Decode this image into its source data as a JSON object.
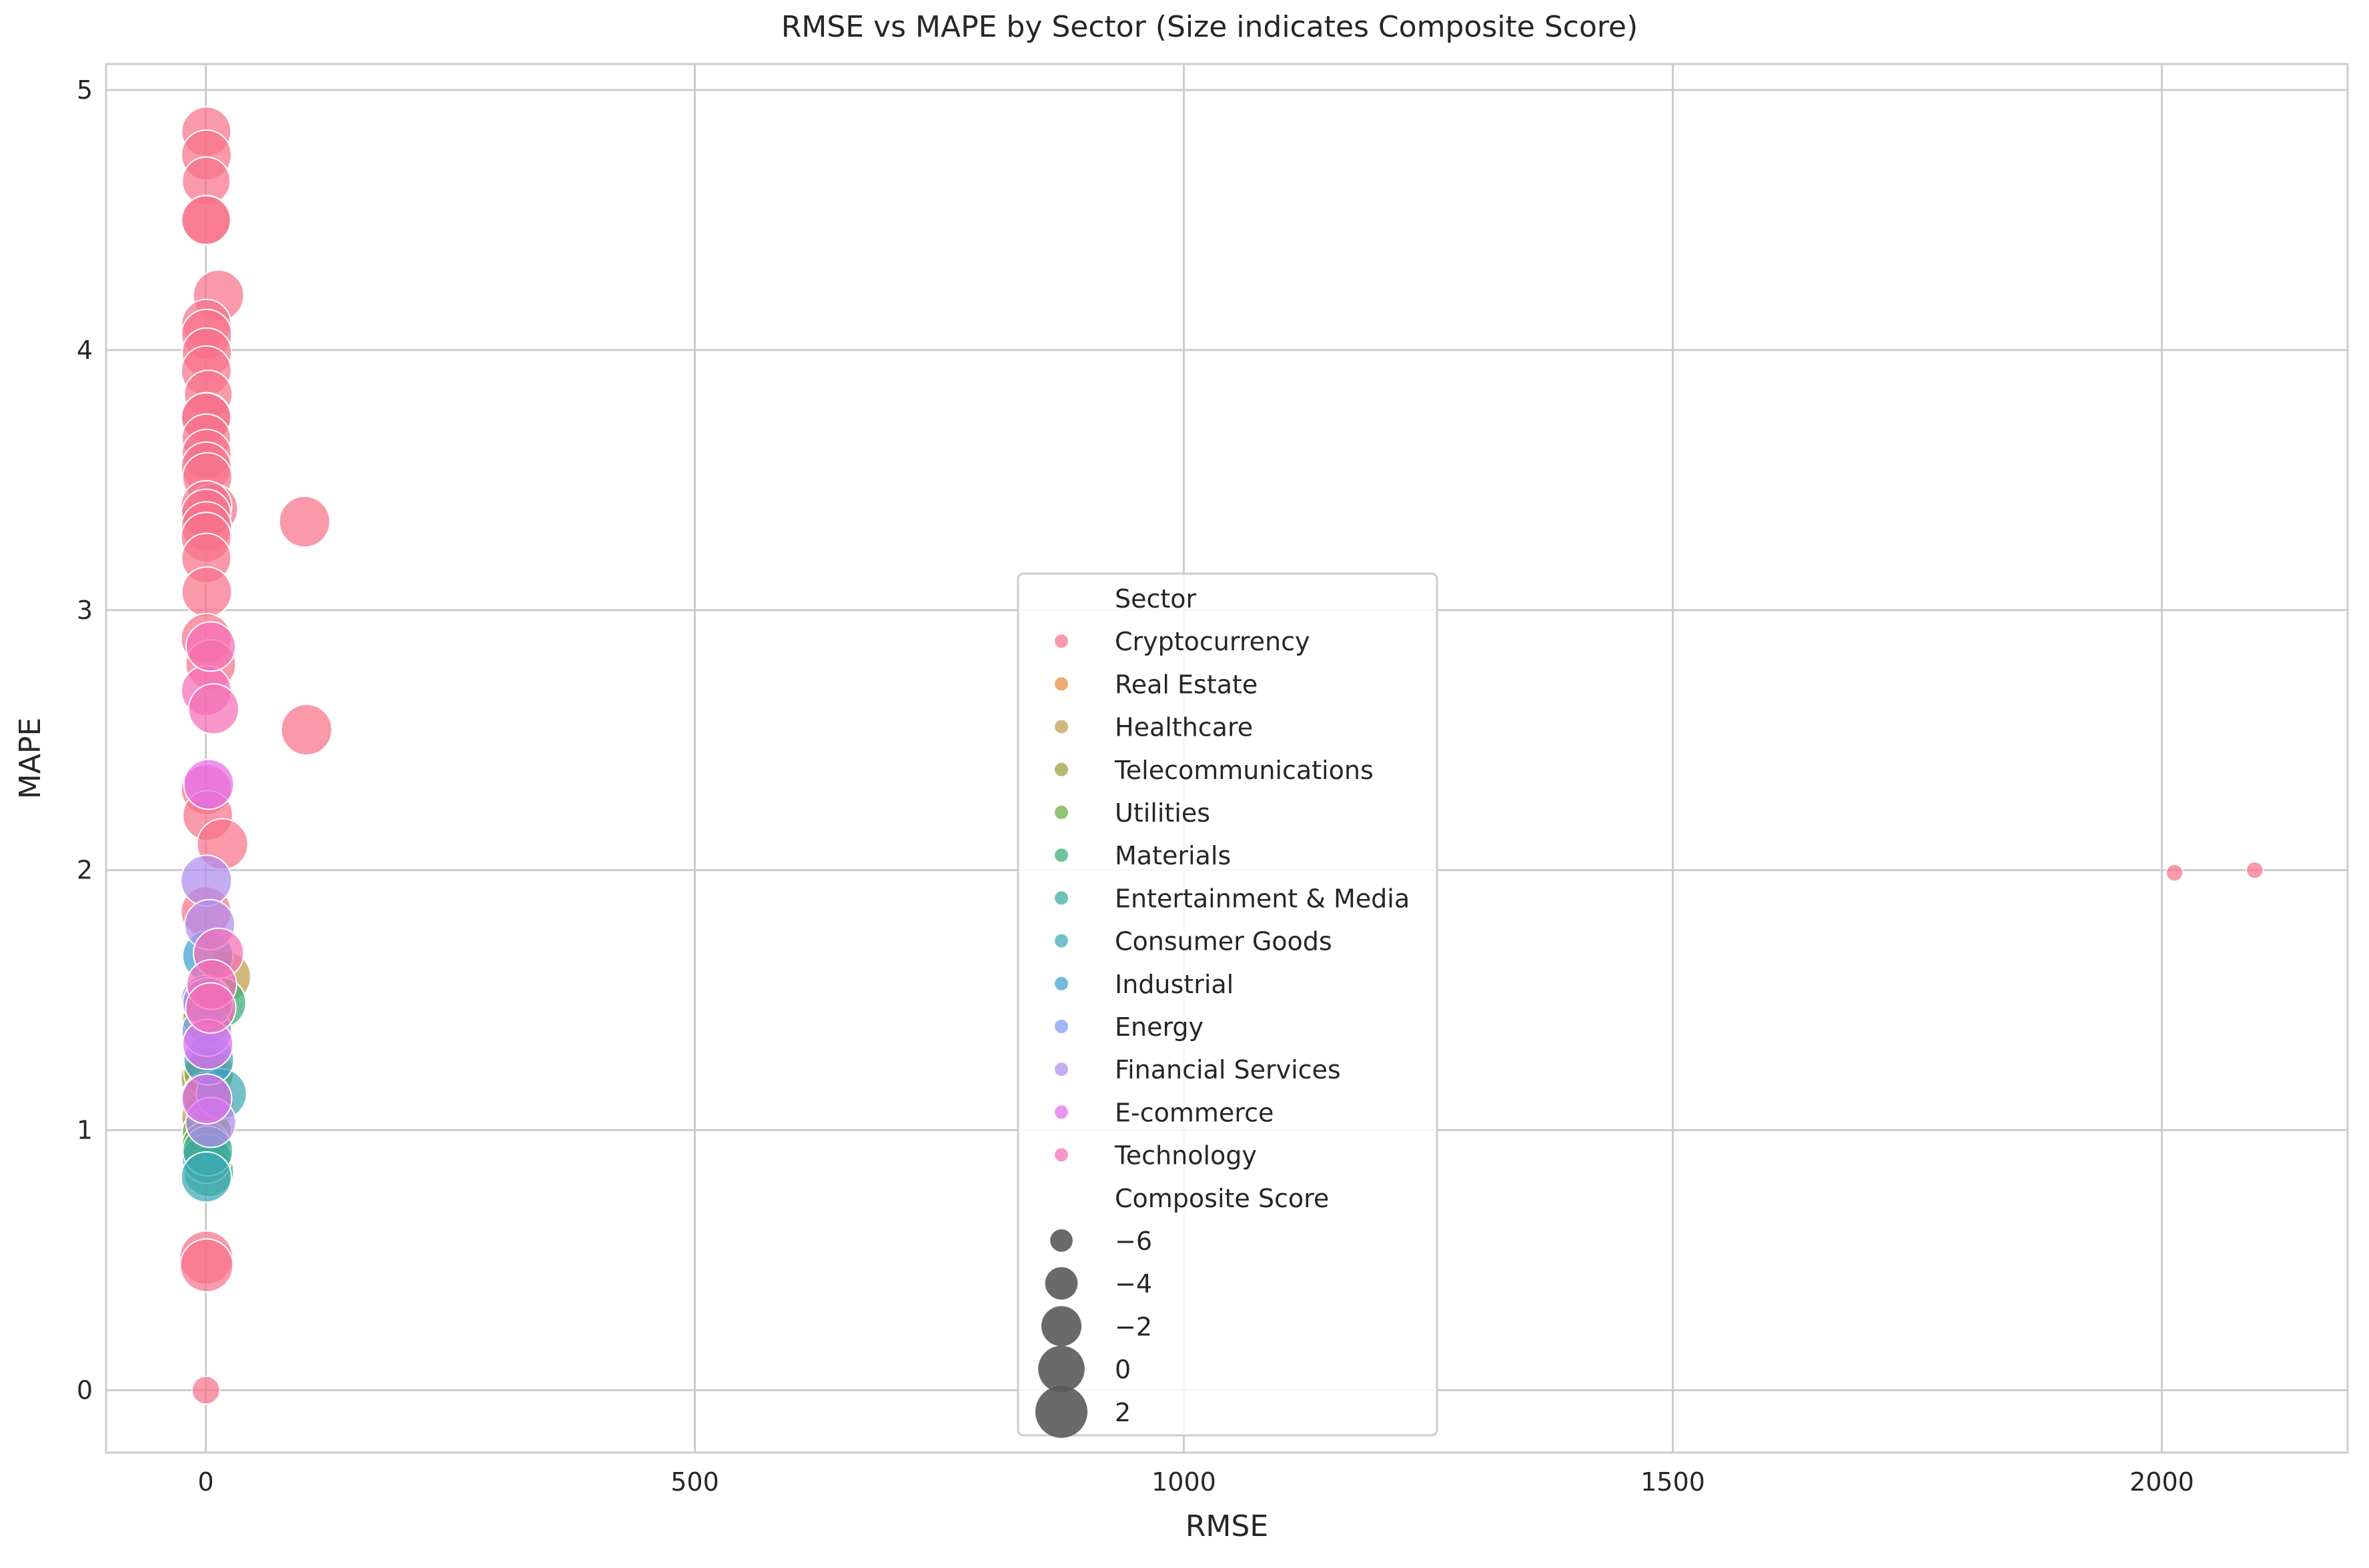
{
  "chart_data": {
    "type": "scatter",
    "title": "RMSE vs MAPE by Sector (Size indicates Composite Score)",
    "xlabel": "RMSE",
    "ylabel": "MAPE",
    "xlim": [
      -102,
      2190
    ],
    "ylim": [
      -0.24,
      5.1
    ],
    "xticks": [
      0,
      500,
      1000,
      1500,
      2000
    ],
    "yticks": [
      0,
      1,
      2,
      3,
      4,
      5
    ],
    "grid": true,
    "legend_position": "center-bottom",
    "legend_hue_title": "Sector",
    "legend_size_title": "Composite Score",
    "size_legend": [
      -6,
      -4,
      -2,
      0,
      2
    ],
    "size_range": [
      -7,
      2.5
    ],
    "series": [
      {
        "name": "Cryptocurrency",
        "color": "#f77189",
        "points": [
          [
            0.5,
            4.84,
            1.0
          ],
          [
            0.6,
            4.75,
            1.2
          ],
          [
            0.4,
            4.65,
            0.5
          ],
          [
            0.5,
            4.5,
            1.0
          ],
          [
            0.3,
            4.5,
            0.8
          ],
          [
            13,
            4.21,
            1.5
          ],
          [
            0.5,
            4.1,
            1.0
          ],
          [
            0.8,
            4.06,
            1.3
          ],
          [
            1.0,
            3.99,
            1.0
          ],
          [
            0.5,
            3.92,
            1.2
          ],
          [
            2.5,
            3.83,
            0.5
          ],
          [
            0.6,
            3.74,
            1.3
          ],
          [
            0.3,
            3.74,
            1.0
          ],
          [
            0.5,
            3.66,
            0.8
          ],
          [
            0.8,
            3.6,
            1.0
          ],
          [
            0.4,
            3.55,
            1.2
          ],
          [
            1.5,
            3.51,
            1.0
          ],
          [
            7,
            3.39,
            1.3
          ],
          [
            0.5,
            3.4,
            1.5
          ],
          [
            0.2,
            3.37,
            1.0
          ],
          [
            101,
            3.34,
            1.5
          ],
          [
            0.6,
            3.32,
            1.3
          ],
          [
            0.3,
            3.28,
            1.2
          ],
          [
            0.5,
            3.2,
            1.0
          ],
          [
            1.0,
            3.07,
            1.2
          ],
          [
            0.4,
            2.89,
            1.3
          ],
          [
            5,
            2.79,
            1.2
          ],
          [
            103,
            2.54,
            1.5
          ],
          [
            0.5,
            2.31,
            1.3
          ],
          [
            2.0,
            2.21,
            1.2
          ],
          [
            17,
            2.1,
            1.5
          ],
          [
            0.3,
            1.84,
            1.3
          ],
          [
            0.5,
            0.51,
            2.5
          ],
          [
            0.8,
            0.48,
            2.3
          ],
          [
            0.1,
            0.0,
            -5.0
          ],
          [
            2013,
            1.99,
            -6.8
          ],
          [
            2095,
            2.0,
            -6.8
          ]
        ]
      },
      {
        "name": "Real Estate",
        "color": "#e68a38",
        "points": [
          [
            3,
            1.1,
            1.0
          ],
          [
            1,
            1.02,
            0.8
          ]
        ]
      },
      {
        "name": "Healthcare",
        "color": "#c29a4c",
        "points": [
          [
            20,
            1.59,
            1.5
          ],
          [
            1,
            1.48,
            1.2
          ],
          [
            0.5,
            1.05,
            1.0
          ]
        ]
      },
      {
        "name": "Telecommunications",
        "color": "#9c9d3a",
        "points": [
          [
            2,
            1.43,
            1.3
          ],
          [
            0.5,
            1.2,
            1.5
          ],
          [
            3,
            1.22,
            1.2
          ],
          [
            1,
            1.13,
            1.0
          ]
        ]
      },
      {
        "name": "Utilities",
        "color": "#6bab3e",
        "points": [
          [
            1,
            0.99,
            1.0
          ],
          [
            0.5,
            0.94,
            0.8
          ]
        ]
      },
      {
        "name": "Materials",
        "color": "#38ad74",
        "points": [
          [
            15,
            1.49,
            1.5
          ],
          [
            3,
            0.84,
            1.2
          ]
        ]
      },
      {
        "name": "Entertainment & Media",
        "color": "#3aab9c",
        "points": [
          [
            1,
            0.89,
            1.0
          ],
          [
            2,
            0.92,
            1.2
          ]
        ]
      },
      {
        "name": "Consumer Goods",
        "color": "#3ba7b5",
        "points": [
          [
            0.5,
            0.82,
            1.3
          ],
          [
            16,
            1.14,
            1.3
          ]
        ]
      },
      {
        "name": "Industrial",
        "color": "#3fa0d0",
        "points": [
          [
            2,
            1.67,
            1.3
          ],
          [
            3,
            1.27,
            1.2
          ]
        ]
      },
      {
        "name": "Energy",
        "color": "#7d9af0",
        "points": [
          [
            1,
            1.38,
            1.2
          ],
          [
            0.5,
            1.5,
            1.3
          ]
        ]
      },
      {
        "name": "Financial Services",
        "color": "#b08cef",
        "points": [
          [
            0.5,
            1.96,
            1.5
          ],
          [
            4,
            1.79,
            1.3
          ],
          [
            5,
            1.03,
            1.3
          ],
          [
            2,
            1.49,
            1.2
          ]
        ]
      },
      {
        "name": "E-commerce",
        "color": "#e36cee",
        "points": [
          [
            3,
            2.33,
            1.2
          ],
          [
            2,
            1.33,
            1.3
          ],
          [
            1,
            1.12,
            1.2
          ]
        ]
      },
      {
        "name": "Technology",
        "color": "#f56db5",
        "points": [
          [
            0.5,
            2.69,
            1.2
          ],
          [
            8,
            2.62,
            1.3
          ],
          [
            5,
            2.86,
            1.0
          ],
          [
            13,
            1.68,
            1.3
          ],
          [
            6,
            1.56,
            1.2
          ],
          [
            5,
            1.47,
            1.3
          ]
        ]
      }
    ]
  }
}
